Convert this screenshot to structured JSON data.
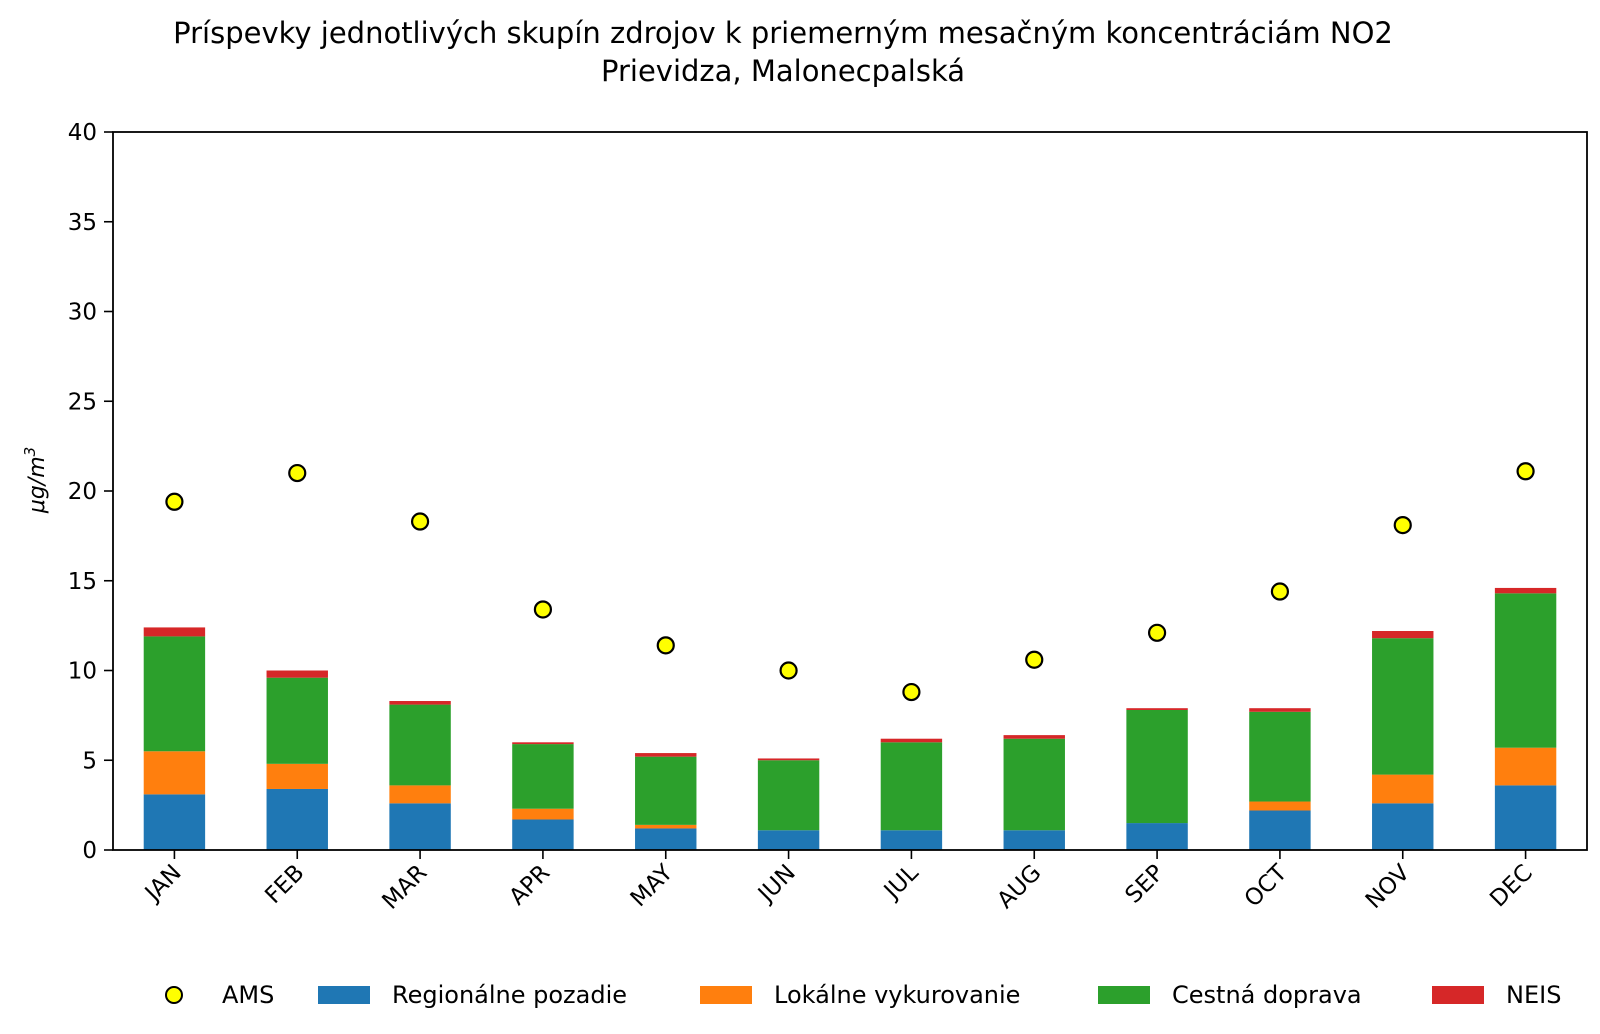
{
  "chart_data": {
    "type": "bar",
    "stacked": true,
    "title": "Príspevky jednotlivých skupín zdrojov k priemerným mesačným koncentráciám NO2",
    "subtitle": "Prievidza, Malonecpalská",
    "xlabel": "",
    "ylabel": "μg/m3",
    "ylim": [
      0,
      40
    ],
    "yticks": [
      0,
      5,
      10,
      15,
      20,
      25,
      30,
      35,
      40
    ],
    "grid": false,
    "legend_position": "bottom",
    "categories": [
      "JAN",
      "FEB",
      "MAR",
      "APR",
      "MAY",
      "JUN",
      "JUL",
      "AUG",
      "SEP",
      "OCT",
      "NOV",
      "DEC"
    ],
    "series": [
      {
        "name": "Regionálne pozadie",
        "color": "#1f77b4",
        "values": [
          3.1,
          3.4,
          2.6,
          1.7,
          1.2,
          1.1,
          1.1,
          1.1,
          1.5,
          2.2,
          2.6,
          3.6
        ]
      },
      {
        "name": "Lokálne vykurovanie",
        "color": "#ff7f0e",
        "values": [
          2.4,
          1.4,
          1.0,
          0.6,
          0.2,
          0.0,
          0.0,
          0.0,
          0.0,
          0.5,
          1.6,
          2.1
        ]
      },
      {
        "name": "Cestná doprava",
        "color": "#2ca02c",
        "values": [
          6.4,
          4.8,
          4.5,
          3.6,
          3.8,
          3.9,
          4.9,
          5.1,
          6.3,
          5.0,
          7.6,
          8.6
        ]
      },
      {
        "name": "NEIS",
        "color": "#d62728",
        "values": [
          0.5,
          0.4,
          0.2,
          0.1,
          0.2,
          0.1,
          0.2,
          0.2,
          0.1,
          0.2,
          0.4,
          0.3
        ]
      }
    ],
    "markers": {
      "name": "AMS",
      "color": "#ffff00",
      "values": [
        19.4,
        21.0,
        18.3,
        13.4,
        11.4,
        10.0,
        8.8,
        10.6,
        12.1,
        14.4,
        18.1,
        21.1
      ]
    }
  },
  "ylabel_base": "μg/m",
  "ylabel_sup": "3"
}
